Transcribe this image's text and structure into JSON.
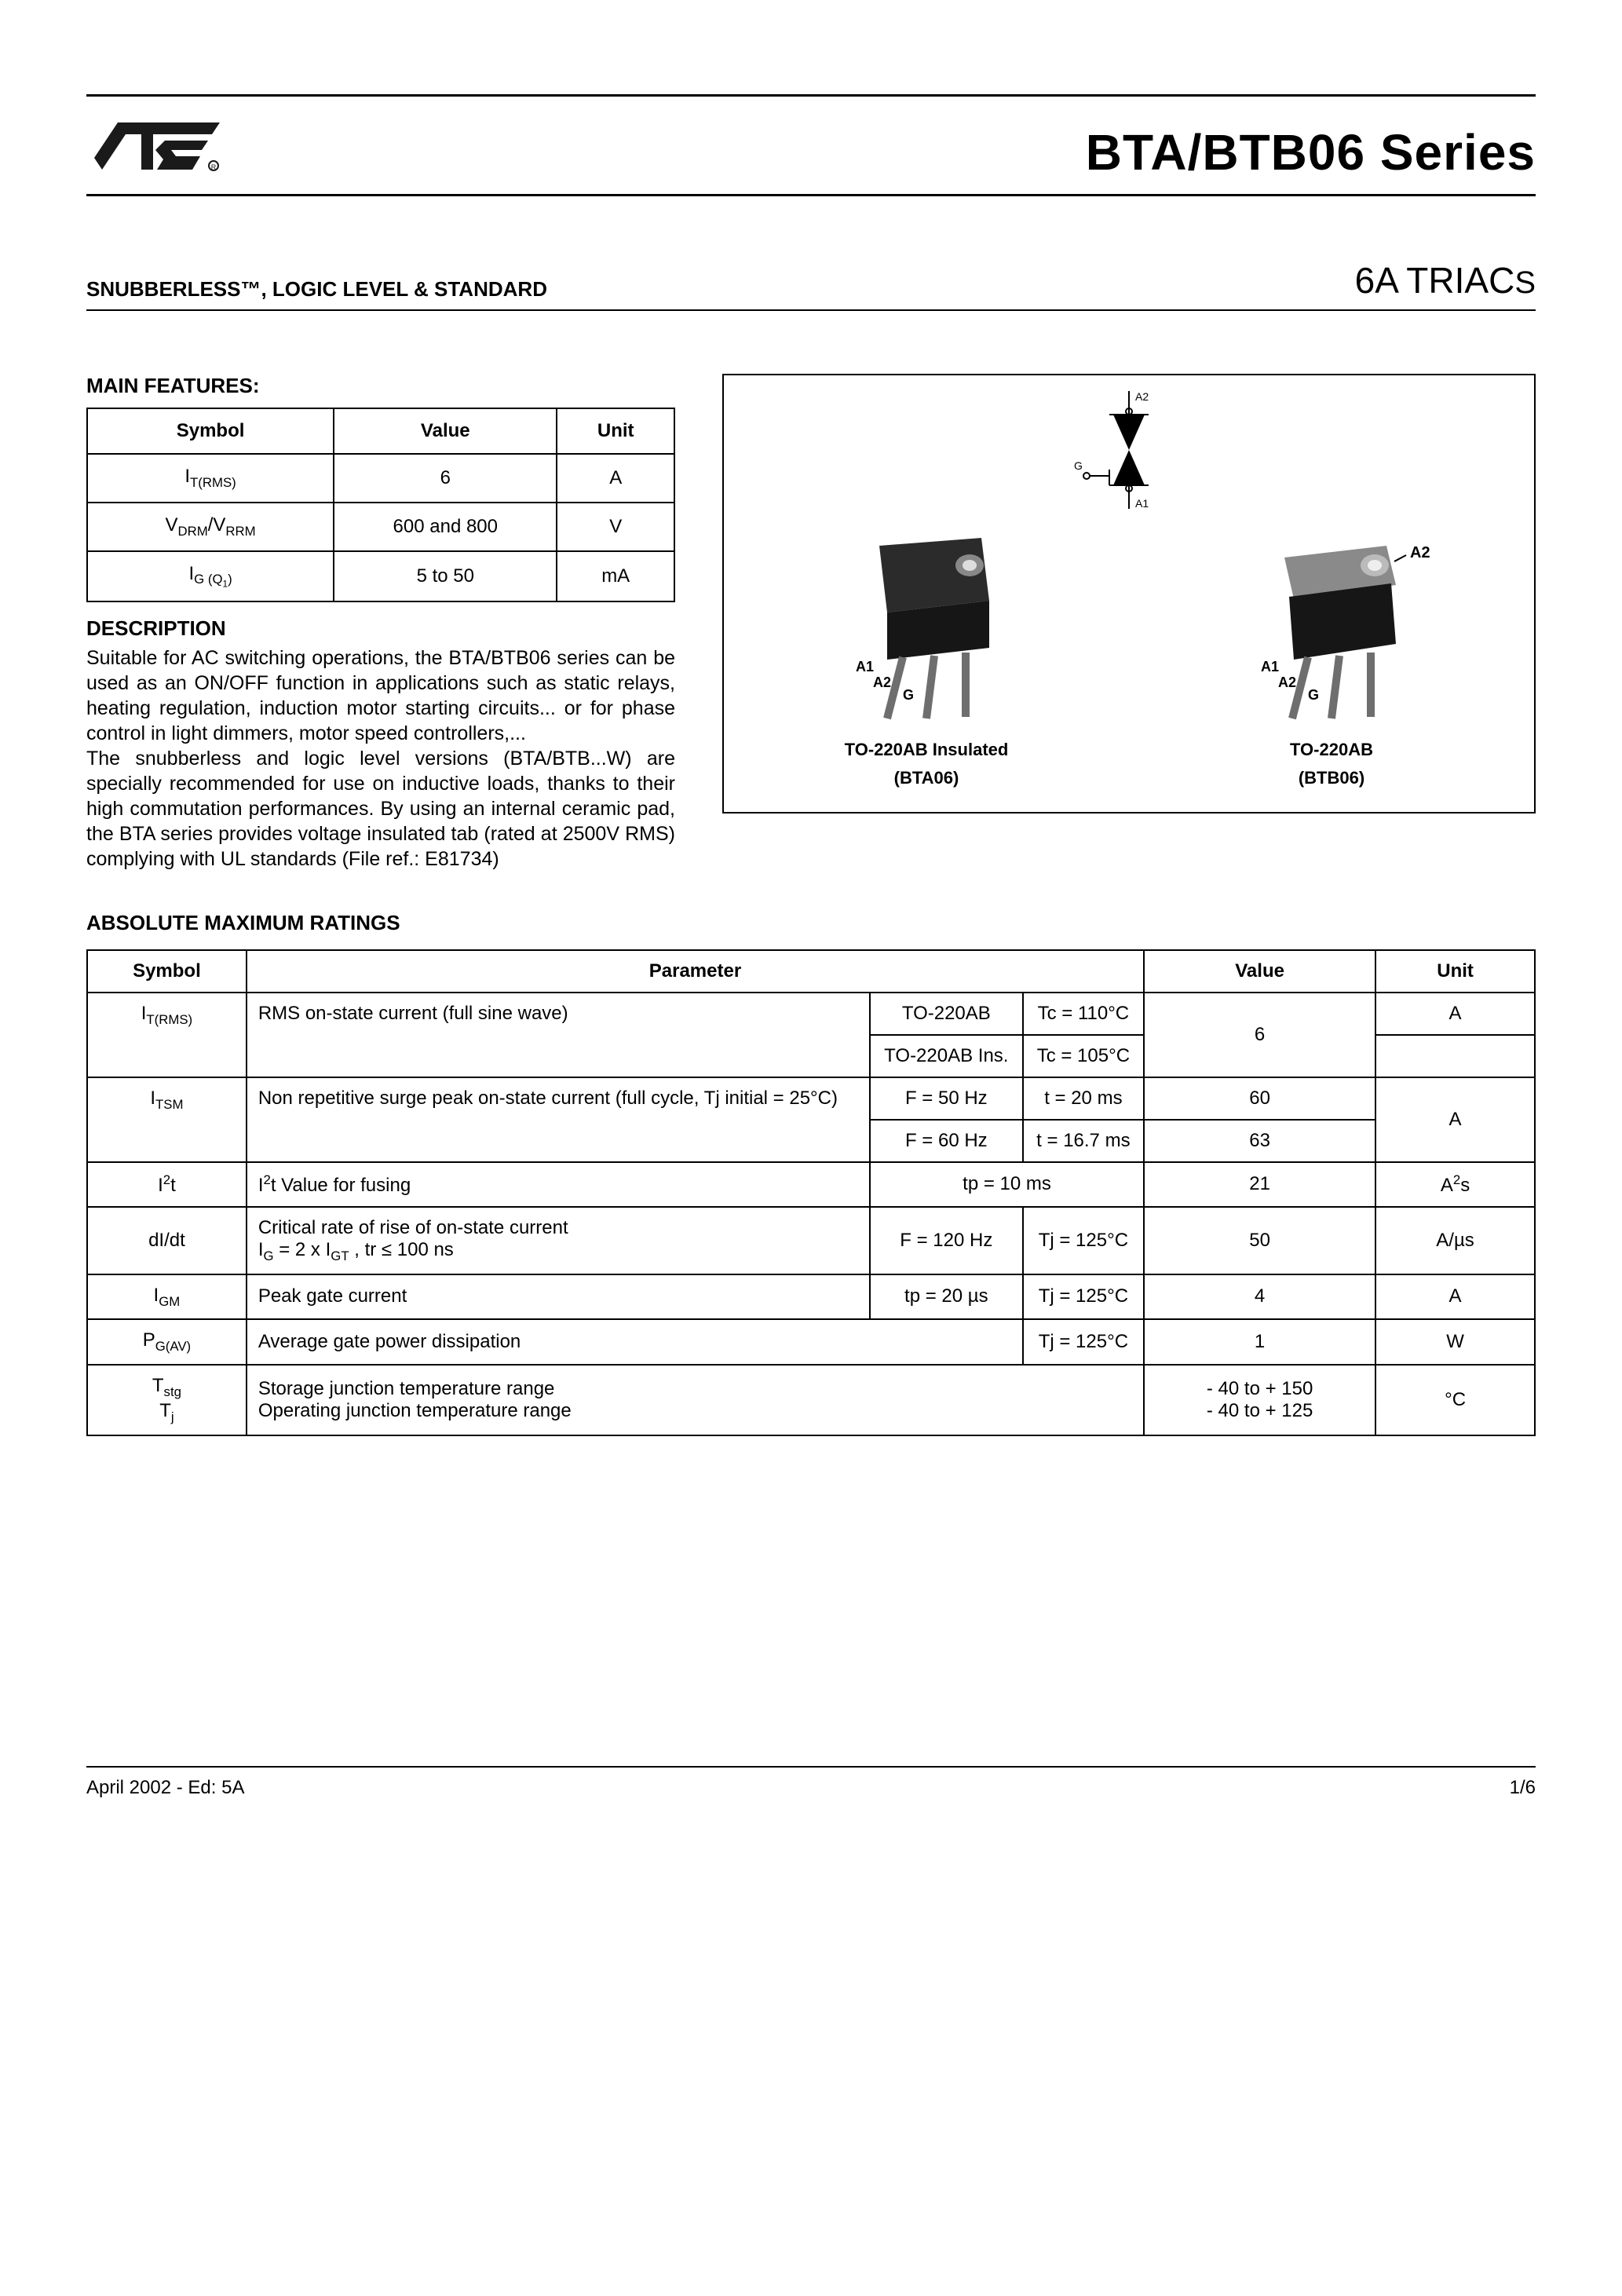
{
  "header": {
    "series_title": "BTA/BTB06 Series",
    "subtitle_left": "SNUBBERLESS™, LOGIC LEVEL & STANDARD",
    "subtitle_right_main": "6A TRIAC",
    "subtitle_right_suffix": "S"
  },
  "colors": {
    "text": "#000000",
    "background": "#ffffff",
    "rule": "#000000",
    "logo_fill": "#1a1a1a"
  },
  "main_features": {
    "heading": "MAIN FEATURES:",
    "columns": [
      "Symbol",
      "Value",
      "Unit"
    ],
    "rows": [
      {
        "sym_html": "I<span class='sub'>T(RMS)</span>",
        "value": "6",
        "unit": "A"
      },
      {
        "sym_html": "V<span class='sub'>DRM</span>/V<span class='sub'>RRM</span>",
        "value": "600 and 800",
        "unit": "V"
      },
      {
        "sym_html": "I<span class='sub'>G (Q<span class='sub'>1</span>)</span>",
        "value": "5 to 50",
        "unit": "mA"
      }
    ]
  },
  "description": {
    "heading": "DESCRIPTION",
    "body": "Suitable for AC switching operations, the BTA/BTB06 series can be used as an ON/OFF function in applications such as static relays, heating regulation, induction motor starting circuits... or for phase control in light dimmers, motor speed controllers,...\nThe snubberless and logic level versions (BTA/BTB...W) are specially recommended for use on inductive loads, thanks to their high commutation performances. By using an internal ceramic pad, the BTA series provides voltage insulated tab (rated at 2500V RMS) complying with UL standards (File ref.: E81734)"
  },
  "package_diagram": {
    "pins": {
      "top": "A2",
      "bottom": "A1",
      "gate": "G"
    },
    "packages": [
      {
        "label_line1": "TO-220AB Insulated",
        "label_line2": "(BTA06)"
      },
      {
        "label_line1": "TO-220AB",
        "label_line2": "(BTB06)"
      }
    ],
    "pin_labels": [
      "A1",
      "A2",
      "G"
    ],
    "right_pin": "A2"
  },
  "amr": {
    "heading": "ABSOLUTE MAXIMUM RATINGS",
    "columns": [
      "Symbol",
      "Parameter",
      "Value",
      "Unit"
    ],
    "rows": [
      {
        "sym_html": "I<span class='sub'>T(RMS)</span>",
        "param": "RMS on-state current (full sine wave)",
        "cond1a": "TO-220AB",
        "cond1b": "Tc = 110°C",
        "cond2a": "TO-220AB Ins.",
        "cond2b": "Tc = 105°C",
        "value": "6",
        "unit": "A",
        "rowspan": 2
      },
      {
        "sym_html": "I<span class='sub'>TSM</span>",
        "param": "Non repetitive surge peak on-state current  (full cycle, Tj initial = 25°C)",
        "cond1a": "F = 50 Hz",
        "cond1b": "t = 20 ms",
        "value1": "60",
        "cond2a": "F = 60 Hz",
        "cond2b": "t = 16.7 ms",
        "value2": "63",
        "unit": "A",
        "rowspan": 2
      },
      {
        "sym_html": "I<span class='sup'>2</span>t",
        "param_html": "I<span class='sup'>2</span>t Value for fusing",
        "cond": "tp = 10 ms",
        "value": "21",
        "unit_html": "A<span class='sup'>2</span>s"
      },
      {
        "sym_html": "dI/dt",
        "param_html": "Critical rate of rise of on-state current<br>I<span class='sub'>G</span> = 2 x I<span class='sub'>GT</span> , tr ≤ 100 ns",
        "cond1": "F = 120 Hz",
        "cond2": "Tj = 125°C",
        "value": "50",
        "unit": "A/µs"
      },
      {
        "sym_html": "I<span class='sub'>GM</span>",
        "param": "Peak gate current",
        "cond1": "tp = 20 µs",
        "cond2": "Tj = 125°C",
        "value": "4",
        "unit": "A"
      },
      {
        "sym_html": "P<span class='sub'>G(AV)</span>",
        "param": "Average gate power dissipation",
        "cond2": "Tj = 125°C",
        "value": "1",
        "unit": "W"
      },
      {
        "sym_html": "T<span class='sub'>stg</span><br>T<span class='sub'>j</span>",
        "param": "Storage junction temperature range\nOperating junction temperature range",
        "value": "- 40 to + 150\n- 40 to + 125",
        "unit": "°C"
      }
    ]
  },
  "footer": {
    "left": "April 2002 - Ed: 5A",
    "right": "1/6"
  }
}
